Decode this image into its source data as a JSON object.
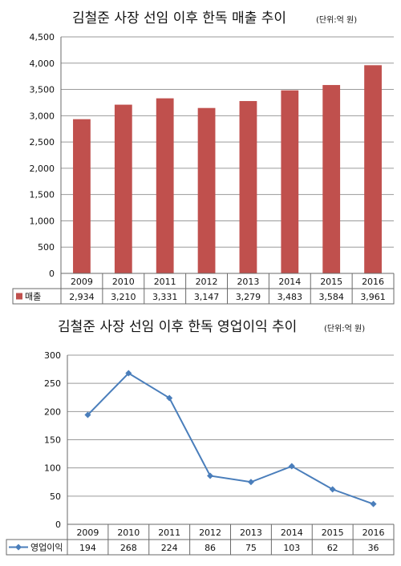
{
  "chart_data": [
    {
      "type": "bar",
      "title": "김철준 사장 선임 이후 한독 매출 추이",
      "unit": "(단위:억 원)",
      "categories": [
        "2009",
        "2010",
        "2011",
        "2012",
        "2013",
        "2014",
        "2015",
        "2016"
      ],
      "series": [
        {
          "name": "매출",
          "values": [
            2934,
            3210,
            3331,
            3147,
            3279,
            3483,
            3584,
            3961
          ]
        }
      ],
      "value_labels": [
        "2,934",
        "3,210",
        "3,331",
        "3,147",
        "3,279",
        "3,483",
        "3,584",
        "3,961"
      ],
      "ylim": [
        0,
        4500
      ],
      "yticks": [
        "0",
        "500",
        "1,000",
        "1,500",
        "2,000",
        "2,500",
        "3,000",
        "3,500",
        "4,000",
        "4,500"
      ],
      "grid": true,
      "legend_placement": "data-table-left",
      "color": "#c0504d"
    },
    {
      "type": "line",
      "title": "김철준 사장 선임 이후 한독 영업이익 추이",
      "unit": "(단위:억 원)",
      "categories": [
        "2009",
        "2010",
        "2011",
        "2012",
        "2013",
        "2014",
        "2015",
        "2016"
      ],
      "series": [
        {
          "name": "영업이익",
          "values": [
            194,
            268,
            224,
            86,
            75,
            103,
            62,
            36
          ]
        }
      ],
      "value_labels": [
        "194",
        "268",
        "224",
        "86",
        "75",
        "103",
        "62",
        "36"
      ],
      "ylim": [
        0,
        300
      ],
      "yticks": [
        "0",
        "50",
        "100",
        "150",
        "200",
        "250",
        "300"
      ],
      "grid": true,
      "legend_placement": "data-table-left",
      "color": "#4a7ebb"
    }
  ]
}
